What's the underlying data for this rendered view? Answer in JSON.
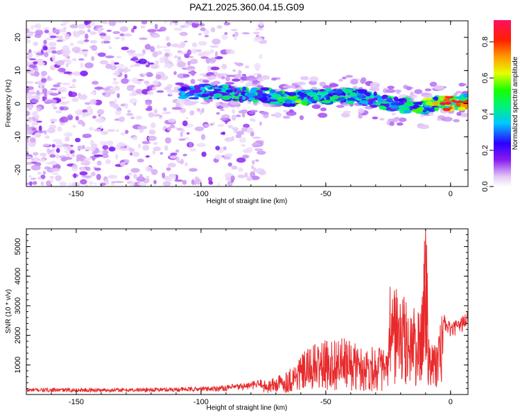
{
  "chart_data": [
    {
      "type": "heatmap",
      "title": "PAZ1.2025.360.04.15.G09",
      "xlabel": "Height of straight line (km)",
      "ylabel": "Frequency (Hz)",
      "xlim": [
        -170,
        7
      ],
      "ylim": [
        -25,
        25
      ],
      "x_ticks": [
        -150,
        -100,
        -50,
        0
      ],
      "x_tick_labels": [
        "-150",
        "-100",
        "-50",
        "0"
      ],
      "y_ticks": [
        -20,
        -10,
        0,
        10,
        20
      ],
      "y_tick_labels": [
        "-20",
        "-10",
        "0",
        "10",
        "20"
      ],
      "ridge": {
        "description_free": true,
        "x": [
          -105,
          -95,
          -85,
          -75,
          -65,
          -55,
          -45,
          -35,
          -25,
          -18,
          -12,
          -5,
          0,
          7
        ],
        "y": [
          3.5,
          3.5,
          3.0,
          2.5,
          1.5,
          2.0,
          2.5,
          2.0,
          0.0,
          -0.5,
          -1.5,
          0.5,
          0.0,
          0.5
        ],
        "amplitude": [
          0.35,
          0.4,
          0.45,
          0.45,
          0.55,
          0.45,
          0.45,
          0.4,
          0.45,
          0.5,
          0.55,
          0.65,
          0.85,
          0.8
        ]
      },
      "colorbar": {
        "label": "Normalized spectral amplitude",
        "range": [
          0,
          0.92
        ],
        "ticks": [
          0.0,
          0.2,
          0.4,
          0.6,
          0.8
        ],
        "tick_labels": [
          "0.0",
          "0.2",
          "0.4",
          "0.6",
          "0.8"
        ]
      }
    },
    {
      "type": "line",
      "xlabel": "Height of straight line (km)",
      "ylabel": "SNR (10 * v/v)",
      "xlim": [
        -170,
        7
      ],
      "ylim": [
        0,
        5600
      ],
      "x_ticks": [
        -150,
        -100,
        -50,
        0
      ],
      "x_tick_labels": [
        "-150",
        "-100",
        "-50",
        "0"
      ],
      "y_ticks": [
        1000,
        2000,
        3000,
        4000,
        5000
      ],
      "y_tick_labels": [
        "1000",
        "2000",
        "3000",
        "4000",
        "5000"
      ],
      "series": [
        {
          "name": "SNR",
          "color": "#e8292b",
          "x": [
            -170,
            -150,
            -130,
            -110,
            -100,
            -90,
            -80,
            -75,
            -70,
            -65,
            -60,
            -55,
            -50,
            -45,
            -40,
            -35,
            -30,
            -25,
            -24,
            -20,
            -15,
            -12,
            -10,
            -8,
            -5,
            -3,
            0,
            3,
            7
          ],
          "y": [
            150,
            150,
            150,
            170,
            180,
            220,
            300,
            380,
            500,
            700,
            1100,
            1400,
            1500,
            1600,
            1500,
            1300,
            1400,
            1200,
            3500,
            2800,
            2500,
            2200,
            5600,
            1500,
            1600,
            2500,
            2200,
            2300,
            2600
          ]
        }
      ]
    }
  ],
  "colors": {
    "line": "#e8292b",
    "axis": "#000000"
  }
}
